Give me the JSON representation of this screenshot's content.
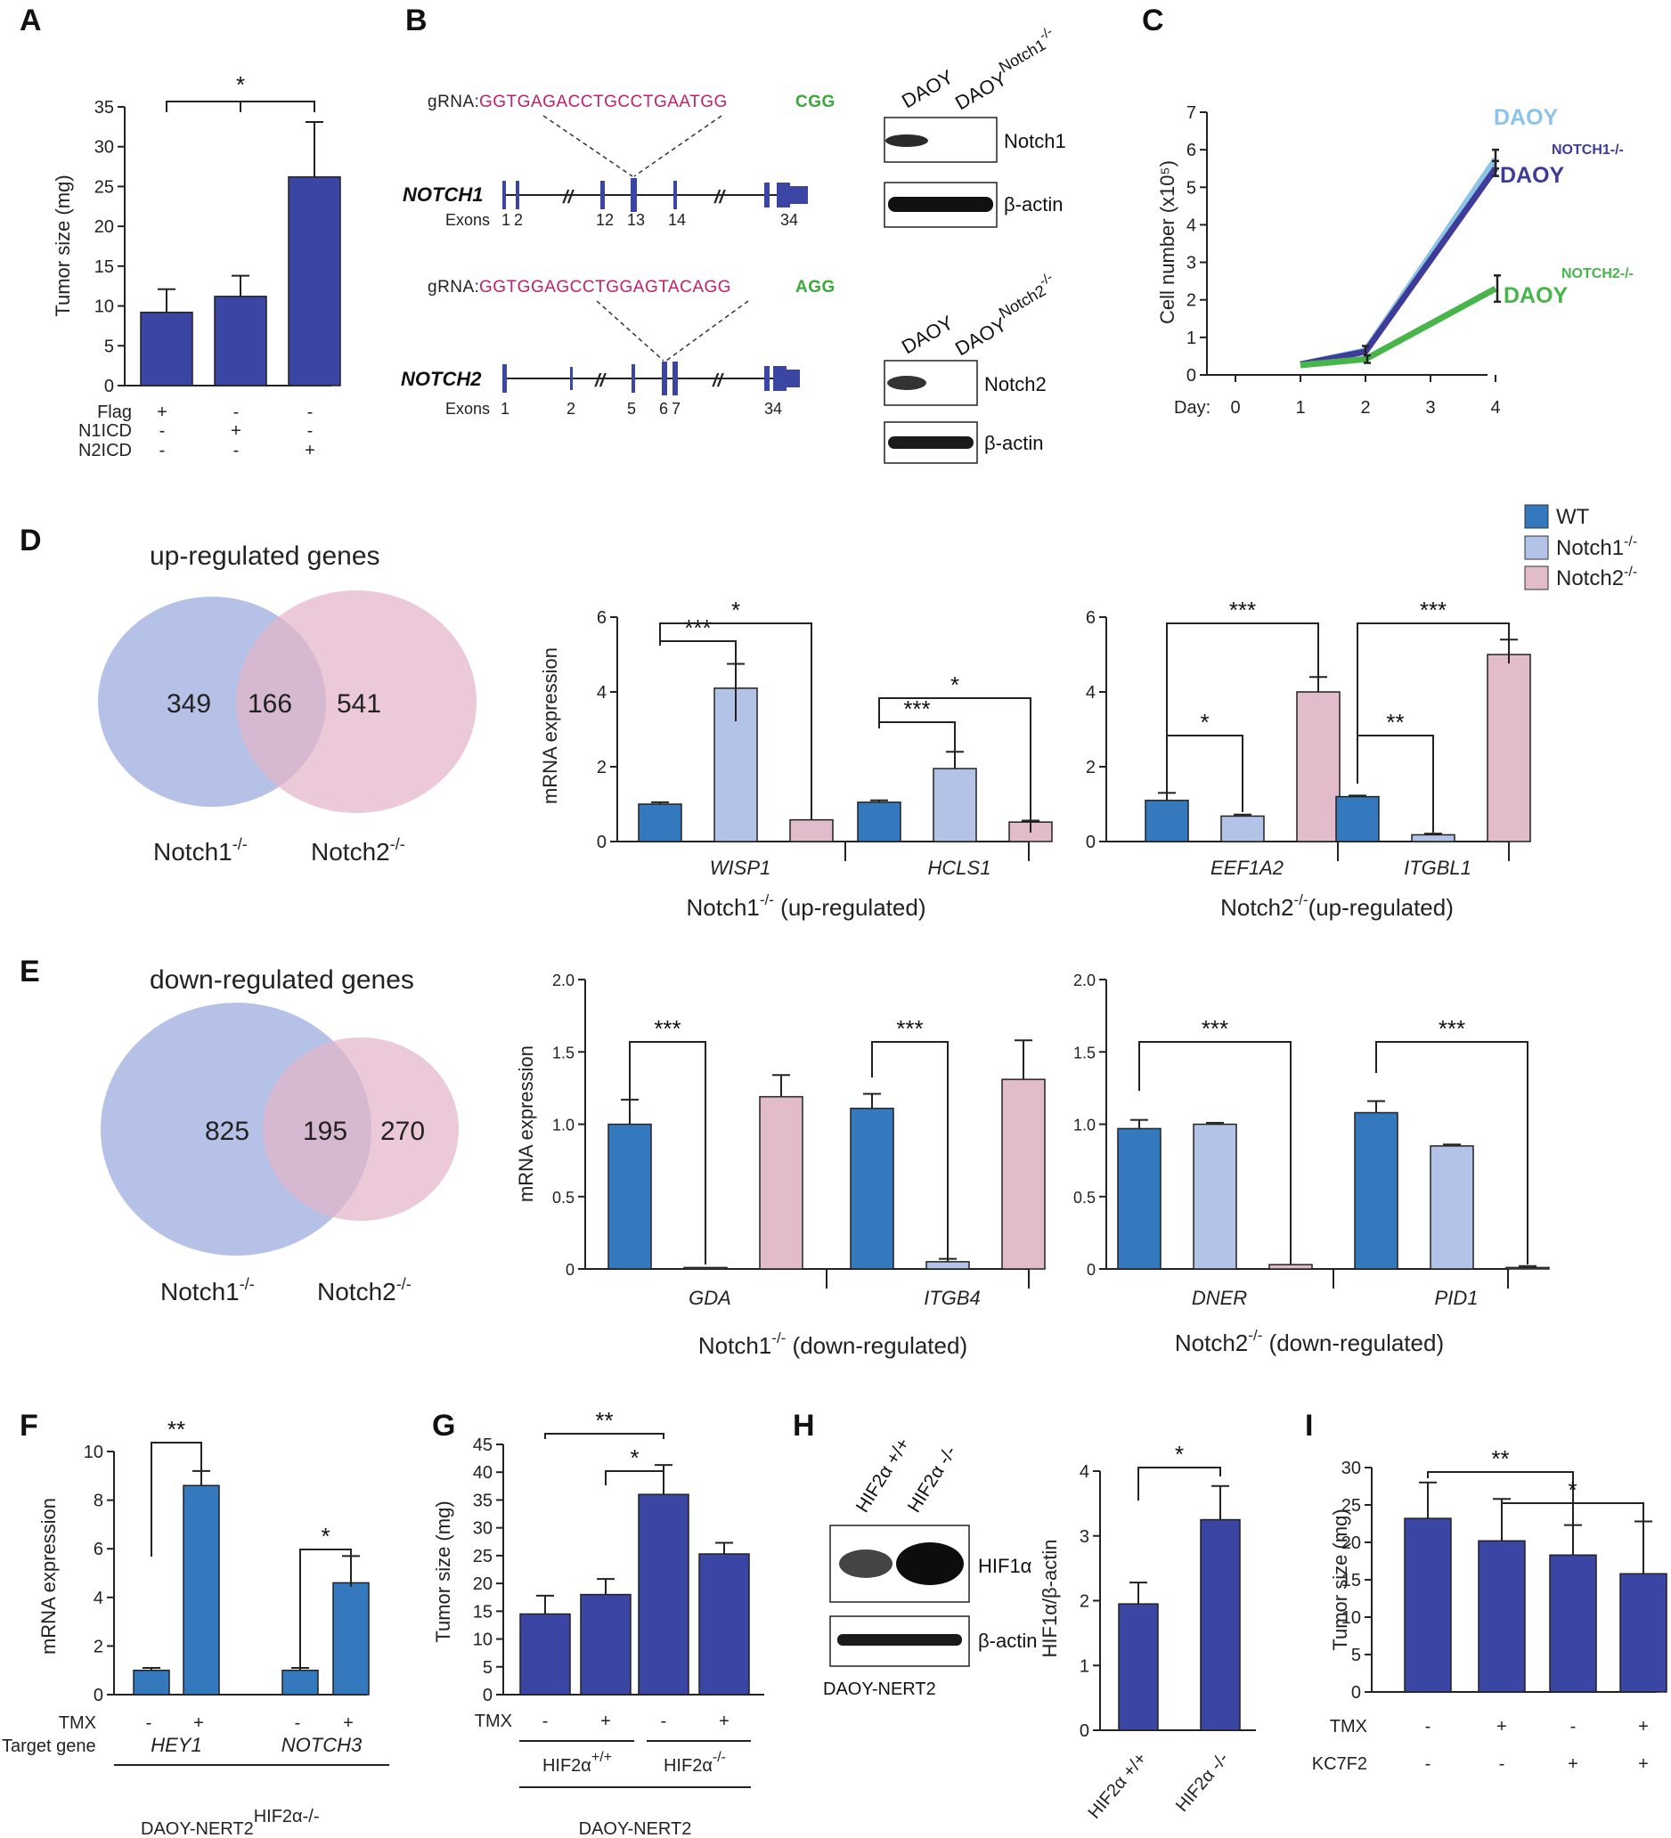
{
  "panel_labels": [
    "A",
    "B",
    "C",
    "D",
    "E",
    "F",
    "G",
    "H",
    "I"
  ],
  "colors": {
    "navy": "#3b45a3",
    "wt": "#3478bd",
    "notch1": "#b3c3e8",
    "notch2": "#e2bccb",
    "venn_blue": "#a9b6e3",
    "venn_pink": "#e3b4c9",
    "daoy_line": "#8bc4e8",
    "notch1_line": "#3e3c98",
    "notch2_line": "#47b54a",
    "grna_seq": "#c21e6e",
    "pam": "#3aa93a"
  },
  "panel_b": {
    "gRNA1": {
      "label": "gRNA:",
      "seq": "GGTGAGACCTGCCTGAATGG",
      "pam": "CGG"
    },
    "gRNA2": {
      "label": "gRNA:",
      "seq": "GGTGGAGCCTGGAGTACAGG",
      "pam": "AGG"
    },
    "notch1_gene": "NOTCH1",
    "notch2_gene": "NOTCH2",
    "exons_label": "Exons",
    "notch1_exons": [
      "1",
      "2",
      "12",
      "13",
      "14",
      "34"
    ],
    "notch2_exons": [
      "1",
      "2",
      "5",
      "6",
      "7",
      "34"
    ],
    "blot1_lanes": [
      "DAOY",
      "DAOY"
    ],
    "blot1_ko_sup": "Notch1",
    "blot1_ko_sup2": "-/-",
    "blot1_bands": [
      "Notch1",
      "β-actin"
    ],
    "blot2_lanes": [
      "DAOY",
      "DAOY"
    ],
    "blot2_ko_sup": "Notch2",
    "blot2_ko_sup2": "-/-",
    "blot2_bands": [
      "Notch2",
      "β-actin"
    ]
  },
  "panel_h_blot": {
    "lanes": [
      "HIF2α +/+",
      "HIF2α -/-"
    ],
    "bands": [
      "HIF1α",
      "β-actin"
    ],
    "caption": "DAOY-NERT2"
  },
  "legend_D": [
    {
      "name": "WT",
      "sup": ""
    },
    {
      "name": "Notch1",
      "sup": "-/-"
    },
    {
      "name": "Notch2",
      "sup": "-/-"
    }
  ],
  "venn": {
    "D": {
      "title": "up-regulated genes",
      "left": "349",
      "mid": "166",
      "right": "541",
      "label_left": "Notch1",
      "label_right": "Notch2",
      "sup": "-/-"
    },
    "E": {
      "title": "down-regulated genes",
      "left": "825",
      "mid": "195",
      "right": "270",
      "label_left": "Notch1",
      "label_right": "Notch2",
      "sup": "-/-"
    }
  },
  "chart_data": [
    {
      "id": "A",
      "type": "bar",
      "ylabel": "Tumor size (mg)",
      "ylim": [
        0,
        35
      ],
      "yticks": [
        0,
        5,
        10,
        15,
        20,
        25,
        30,
        35
      ],
      "values": [
        9.2,
        11.2,
        26.2
      ],
      "errors": [
        2.9,
        2.6,
        6.9
      ],
      "row_labels": [
        "Flag",
        "N1ICD",
        "N2ICD"
      ],
      "row_values": [
        [
          "+",
          "-",
          "-"
        ],
        [
          "-",
          "+",
          "-"
        ],
        [
          "-",
          "-",
          "+"
        ]
      ],
      "significance": [
        {
          "from": 0,
          "to": 2,
          "label": "*"
        }
      ]
    },
    {
      "id": "C",
      "type": "line",
      "ylabel": "Cell number (x10⁵)",
      "xlabel": "Day:",
      "x": [
        0,
        1,
        2,
        3,
        4
      ],
      "ylim": [
        0,
        7
      ],
      "yticks": [
        0,
        1,
        2,
        3,
        4,
        5,
        6,
        7
      ],
      "series": [
        {
          "name": "DAOY",
          "sup": "",
          "x": [
            1,
            2,
            4
          ],
          "values": [
            0.28,
            0.65,
            5.75
          ],
          "errors": [
            0,
            0,
            0.25
          ]
        },
        {
          "name": "DAOY",
          "sup": "NOTCH1-/-",
          "x": [
            1,
            2,
            4
          ],
          "values": [
            0.28,
            0.62,
            5.5
          ],
          "errors": [
            0,
            0.15,
            0.2
          ]
        },
        {
          "name": "DAOY",
          "sup": "NOTCH2-/-",
          "x": [
            1,
            2,
            4
          ],
          "values": [
            0.26,
            0.42,
            2.3
          ],
          "errors": [
            0,
            0.1,
            0.35
          ]
        }
      ]
    },
    {
      "id": "D1",
      "type": "bar",
      "ylabel": "mRNA expression",
      "ylim": [
        0,
        6
      ],
      "yticks": [
        0,
        2,
        4,
        6
      ],
      "categories": [
        "WISP1",
        "HCLS1"
      ],
      "group_label": "Notch1",
      "group_sup": "-/-",
      "group_suffix": " (up-regulated)",
      "series": [
        {
          "name": "WT",
          "values": [
            1.0,
            1.05
          ],
          "errors": [
            0.05,
            0.05
          ]
        },
        {
          "name": "Notch1-/-",
          "values": [
            4.1,
            1.95
          ],
          "errors": [
            0.65,
            0.45
          ]
        },
        {
          "name": "Notch2-/-",
          "values": [
            0.58,
            0.52
          ],
          "errors": [
            0,
            0.04
          ]
        }
      ],
      "significance": [
        {
          "cat": 0,
          "from": 0,
          "to": 1,
          "label": "***"
        },
        {
          "cat": 0,
          "from": 0,
          "to": 2,
          "label": "*"
        },
        {
          "cat": 1,
          "from": 0,
          "to": 1,
          "label": "***"
        },
        {
          "cat": 1,
          "from": 0,
          "to": 2,
          "label": "*"
        }
      ]
    },
    {
      "id": "D2",
      "type": "bar",
      "ylim": [
        0,
        6
      ],
      "yticks": [
        0,
        2,
        4,
        6
      ],
      "categories": [
        "EEF1A2",
        "ITGBL1"
      ],
      "group_label": "Notch2",
      "group_sup": "-/-",
      "group_suffix": "(up-regulated)",
      "series": [
        {
          "name": "WT",
          "values": [
            1.1,
            1.2
          ],
          "errors": [
            0.2,
            0.03
          ]
        },
        {
          "name": "Notch1-/-",
          "values": [
            0.68,
            0.18
          ],
          "errors": [
            0.04,
            0.03
          ]
        },
        {
          "name": "Notch2-/-",
          "values": [
            4.0,
            5.0
          ],
          "errors": [
            0.4,
            0.4
          ]
        }
      ],
      "significance": [
        {
          "cat": 0,
          "from": 0,
          "to": 1,
          "label": "*"
        },
        {
          "cat": 0,
          "from": 0,
          "to": 2,
          "label": "***"
        },
        {
          "cat": 1,
          "from": 0,
          "to": 1,
          "label": "**"
        },
        {
          "cat": 1,
          "from": 0,
          "to": 2,
          "label": "***"
        }
      ]
    },
    {
      "id": "E1",
      "type": "bar",
      "ylabel": "mRNA expression",
      "ylim": [
        0,
        2.0
      ],
      "yticks": [
        "0",
        "0.5",
        "1.0",
        "1.5",
        "2.0"
      ],
      "categories": [
        "GDA",
        "ITGB4"
      ],
      "group_label": "Notch1",
      "group_sup": "-/-",
      "group_suffix": "  (down-regulated)",
      "series": [
        {
          "name": "WT",
          "values": [
            1.0,
            1.11
          ],
          "errors": [
            0.17,
            0.1
          ]
        },
        {
          "name": "Notch1-/-",
          "values": [
            0.01,
            0.05
          ],
          "errors": [
            0,
            0.02
          ]
        },
        {
          "name": "Notch2-/-",
          "values": [
            1.19,
            1.31
          ],
          "errors": [
            0.15,
            0.27
          ]
        }
      ],
      "significance": [
        {
          "cat": 0,
          "from": 0,
          "to": 1,
          "label": "***"
        },
        {
          "cat": 1,
          "from": 0,
          "to": 1,
          "label": "***"
        }
      ]
    },
    {
      "id": "E2",
      "type": "bar",
      "ylim": [
        0,
        2.0
      ],
      "yticks": [
        "0",
        "0.5",
        "1.0",
        "1.5",
        "2.0"
      ],
      "categories": [
        "DNER",
        "PID1"
      ],
      "group_label": "Notch2",
      "group_sup": "-/-",
      "group_suffix": " (down-regulated)",
      "series": [
        {
          "name": "WT",
          "values": [
            0.97,
            1.08
          ],
          "errors": [
            0.06,
            0.08
          ]
        },
        {
          "name": "Notch1-/-",
          "values": [
            1.0,
            0.85
          ],
          "errors": [
            0.01,
            0.01
          ]
        },
        {
          "name": "Notch2-/-",
          "values": [
            0.03,
            0.01
          ],
          "errors": [
            0,
            0.01
          ]
        }
      ],
      "significance": [
        {
          "cat": 0,
          "from": 0,
          "to": 2,
          "label": "***"
        },
        {
          "cat": 1,
          "from": 0,
          "to": 2,
          "label": "***"
        }
      ]
    },
    {
      "id": "F",
      "type": "bar",
      "ylabel": "mRNA expression",
      "ylim": [
        0,
        10
      ],
      "yticks": [
        0,
        2,
        4,
        6,
        8,
        10
      ],
      "values": [
        1.0,
        8.6,
        1.0,
        4.6
      ],
      "errors": [
        0.1,
        0.6,
        0.1,
        1.1
      ],
      "tmx_label": "TMX",
      "tmx": [
        "-",
        "+",
        "-",
        "+"
      ],
      "target_label": "Target gene",
      "target_genes": [
        "HEY1",
        "NOTCH3"
      ],
      "footer": "DAOY-NERT2",
      "footer_sup": "HIF2α-/-",
      "significance": [
        {
          "from": 0,
          "to": 1,
          "label": "**"
        },
        {
          "from": 2,
          "to": 3,
          "label": "*"
        }
      ]
    },
    {
      "id": "G",
      "type": "bar",
      "ylabel": "Tumor size (mg)",
      "ylim": [
        0,
        45
      ],
      "yticks": [
        0,
        5,
        10,
        15,
        20,
        25,
        30,
        35,
        40,
        45
      ],
      "values": [
        14.5,
        18.0,
        36.0,
        25.3
      ],
      "errors": [
        3.3,
        2.8,
        5.3,
        2.0
      ],
      "tmx_label": "TMX",
      "tmx": [
        "-",
        "+",
        "-",
        "+"
      ],
      "groups": [
        {
          "name": "HIF2α",
          "sup": "+/+"
        },
        {
          "name": "HIF2α",
          "sup": "-/-"
        }
      ],
      "footer": "DAOY-NERT2",
      "significance": [
        {
          "from": 0,
          "to": 2,
          "label": "**"
        },
        {
          "from": 1,
          "to": 2,
          "label": "*"
        }
      ]
    },
    {
      "id": "H",
      "type": "bar",
      "ylabel": "HIF1α/β-actin",
      "ylim": [
        0,
        4
      ],
      "yticks": [
        0,
        1,
        2,
        3,
        4
      ],
      "categories": [
        "HIF2α +/+",
        "HIF2α -/-"
      ],
      "values": [
        1.95,
        3.25
      ],
      "errors": [
        0.33,
        0.52
      ],
      "significance": [
        {
          "from": 0,
          "to": 1,
          "label": "*"
        }
      ]
    },
    {
      "id": "I",
      "type": "bar",
      "ylabel": "Tumor size (mg)",
      "ylim": [
        0,
        30
      ],
      "yticks": [
        0,
        5,
        10,
        15,
        20,
        25,
        30
      ],
      "values": [
        23.2,
        20.2,
        18.3,
        15.8
      ],
      "errors": [
        4.8,
        5.6,
        4.0,
        7.0
      ],
      "row_labels": [
        "TMX",
        "KC7F2"
      ],
      "row_values": [
        [
          "-",
          "+",
          "-",
          "+"
        ],
        [
          "-",
          "-",
          "+",
          "+"
        ]
      ],
      "significance": [
        {
          "from": 0,
          "to": 2,
          "label": "**"
        },
        {
          "from": 1,
          "to": 3,
          "label": "*"
        }
      ]
    }
  ]
}
